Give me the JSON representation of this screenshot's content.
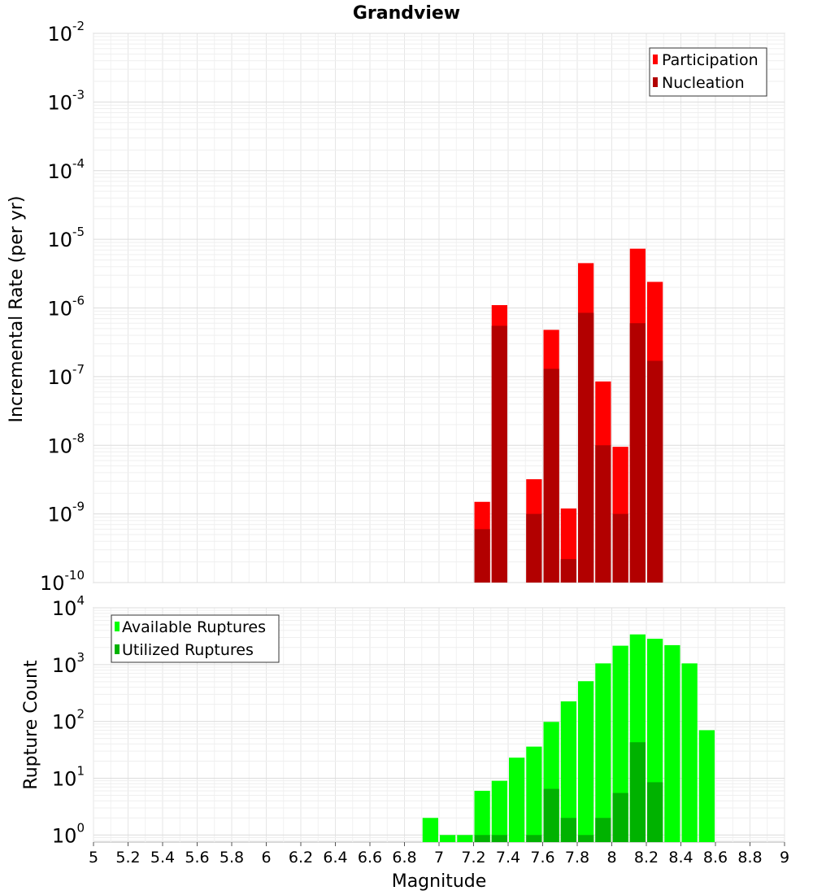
{
  "chart_data": [
    {
      "type": "bar",
      "title": "Grandview",
      "xlabel": "",
      "ylabel": "Incremental Rate (per yr)",
      "yscale": "log",
      "ylim": [
        1e-10,
        0.01
      ],
      "xlim": [
        5,
        9
      ],
      "y_ticks": [
        {
          "base": "10",
          "exp": "-10"
        },
        {
          "base": "10",
          "exp": "-9"
        },
        {
          "base": "10",
          "exp": "-8"
        },
        {
          "base": "10",
          "exp": "-7"
        },
        {
          "base": "10",
          "exp": "-6"
        },
        {
          "base": "10",
          "exp": "-5"
        },
        {
          "base": "10",
          "exp": "-4"
        },
        {
          "base": "10",
          "exp": "-3"
        },
        {
          "base": "10",
          "exp": "-2"
        }
      ],
      "legend": {
        "position": "top-right",
        "entries": [
          {
            "label": "Participation",
            "color": "#ff0000"
          },
          {
            "label": "Nucleation",
            "color": "#b20000"
          }
        ]
      },
      "grid": true,
      "series": [
        {
          "name": "Participation",
          "color": "#ff0000",
          "x": [
            7.25,
            7.35,
            7.55,
            7.65,
            7.75,
            7.85,
            7.95,
            8.05,
            8.15,
            8.25
          ],
          "values": [
            1.5e-09,
            1.1e-06,
            3.2e-09,
            4.8e-07,
            1.2e-09,
            4.5e-06,
            8.5e-08,
            9.5e-09,
            7.3e-06,
            2.4e-06
          ]
        },
        {
          "name": "Nucleation",
          "color": "#b20000",
          "x": [
            7.25,
            7.35,
            7.55,
            7.65,
            7.75,
            7.85,
            7.95,
            8.05,
            8.15,
            8.25
          ],
          "values": [
            6e-10,
            5.5e-07,
            1e-09,
            1.3e-07,
            2.2e-10,
            8.5e-07,
            1e-08,
            1e-09,
            6e-07,
            1.7e-07
          ]
        }
      ]
    },
    {
      "type": "bar",
      "title": "",
      "xlabel": "Magnitude",
      "ylabel": "Rupture Count",
      "yscale": "log",
      "ylim": [
        0.75,
        10000
      ],
      "xlim": [
        5,
        9
      ],
      "x_ticks": [
        "5",
        "5.2",
        "5.4",
        "5.6",
        "5.8",
        "6",
        "6.2",
        "6.4",
        "6.6",
        "6.8",
        "7",
        "7.2",
        "7.4",
        "7.6",
        "7.8",
        "8",
        "8.2",
        "8.4",
        "8.6",
        "8.8",
        "9"
      ],
      "y_ticks": [
        {
          "base": "10",
          "exp": "0"
        },
        {
          "base": "10",
          "exp": "1"
        },
        {
          "base": "10",
          "exp": "2"
        },
        {
          "base": "10",
          "exp": "3"
        },
        {
          "base": "10",
          "exp": "4"
        }
      ],
      "legend": {
        "position": "top-left",
        "entries": [
          {
            "label": "Available Ruptures",
            "color": "#00ff00"
          },
          {
            "label": "Utilized Ruptures",
            "color": "#00b200"
          }
        ]
      },
      "grid": true,
      "series": [
        {
          "name": "Available Ruptures",
          "color": "#00ff00",
          "x": [
            6.95,
            7.05,
            7.15,
            7.25,
            7.35,
            7.45,
            7.55,
            7.65,
            7.75,
            7.85,
            7.95,
            8.05,
            8.15,
            8.25,
            8.35,
            8.45,
            8.55
          ],
          "values": [
            2,
            1,
            1,
            6,
            9,
            23,
            36,
            98,
            225,
            510,
            1050,
            2150,
            3400,
            2850,
            2200,
            1050,
            70
          ]
        },
        {
          "name": "Utilized Ruptures",
          "color": "#00b200",
          "x": [
            7.25,
            7.35,
            7.55,
            7.65,
            7.75,
            7.85,
            7.95,
            8.05,
            8.15,
            8.25
          ],
          "values": [
            1,
            1,
            1,
            6.5,
            2,
            1,
            2,
            5.5,
            43,
            8.5
          ]
        }
      ]
    }
  ]
}
